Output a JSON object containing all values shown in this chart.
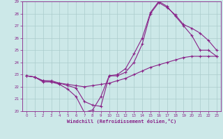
{
  "xlabel": "Windchill (Refroidissement éolien,°C)",
  "xlim": [
    0,
    23
  ],
  "ylim": [
    20,
    29
  ],
  "xticks": [
    0,
    1,
    2,
    3,
    4,
    5,
    6,
    7,
    8,
    9,
    10,
    11,
    12,
    13,
    14,
    15,
    16,
    17,
    18,
    19,
    20,
    21,
    22,
    23
  ],
  "yticks": [
    20,
    21,
    22,
    23,
    24,
    25,
    26,
    27,
    28,
    29
  ],
  "bg_color": "#cce8e8",
  "grid_color": "#aacccc",
  "line_color": "#882288",
  "line1_x": [
    0,
    1,
    2,
    3,
    4,
    5,
    6,
    7,
    8,
    9,
    10,
    11,
    12,
    13,
    14,
    15,
    16,
    17,
    18,
    19,
    20,
    21,
    22,
    23
  ],
  "line1_y": [
    22.9,
    22.8,
    22.4,
    22.4,
    22.2,
    21.8,
    21.2,
    19.9,
    20.1,
    21.2,
    22.9,
    23.0,
    23.5,
    24.7,
    26.0,
    28.1,
    29.0,
    28.6,
    27.8,
    27.0,
    26.2,
    25.0,
    25.0,
    24.5
  ],
  "line2_x": [
    0,
    1,
    2,
    3,
    4,
    5,
    6,
    7,
    8,
    9,
    10,
    11,
    12,
    13,
    14,
    15,
    16,
    17,
    18,
    19,
    20,
    21,
    22,
    23
  ],
  "line2_y": [
    22.9,
    22.8,
    22.5,
    22.5,
    22.3,
    22.2,
    22.1,
    22.0,
    22.1,
    22.2,
    22.3,
    22.5,
    22.7,
    23.0,
    23.3,
    23.6,
    23.8,
    24.0,
    24.2,
    24.4,
    24.5,
    24.5,
    24.5,
    24.5
  ],
  "line3_x": [
    0,
    1,
    2,
    3,
    4,
    5,
    6,
    7,
    8,
    9,
    10,
    11,
    12,
    13,
    14,
    15,
    16,
    17,
    18,
    19,
    20,
    21,
    22,
    23
  ],
  "line3_y": [
    22.9,
    22.8,
    22.5,
    22.4,
    22.3,
    22.1,
    21.9,
    20.8,
    20.5,
    20.4,
    22.9,
    22.9,
    23.2,
    24.0,
    25.5,
    28.0,
    28.9,
    28.5,
    27.9,
    27.1,
    26.8,
    26.4,
    25.8,
    25.0
  ]
}
